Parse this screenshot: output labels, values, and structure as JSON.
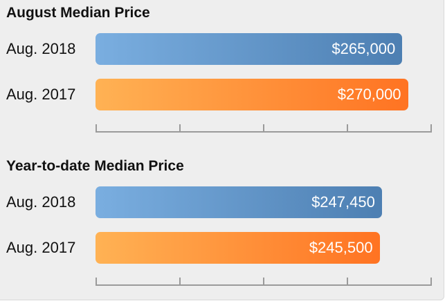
{
  "chart_data": [
    {
      "type": "bar",
      "orientation": "horizontal",
      "title": "August Median Price",
      "categories": [
        "Aug. 2018",
        "Aug. 2017"
      ],
      "values": [
        265000,
        270000
      ],
      "value_labels": [
        "$265,000",
        "$270,000"
      ],
      "colors": [
        "#5b8cc2",
        "#ff8a2e"
      ],
      "xlim": [
        0,
        290000
      ],
      "grid": false,
      "axis_ticks": 5
    },
    {
      "type": "bar",
      "orientation": "horizontal",
      "title": "Year-to-date Median Price",
      "categories": [
        "Aug. 2018",
        "Aug. 2017"
      ],
      "values": [
        247450,
        245500
      ],
      "value_labels": [
        "$247,450",
        "$245,500"
      ],
      "colors": [
        "#5b8cc2",
        "#ff8a2e"
      ],
      "xlim": [
        0,
        290000
      ],
      "grid": false,
      "axis_ticks": 5
    }
  ]
}
